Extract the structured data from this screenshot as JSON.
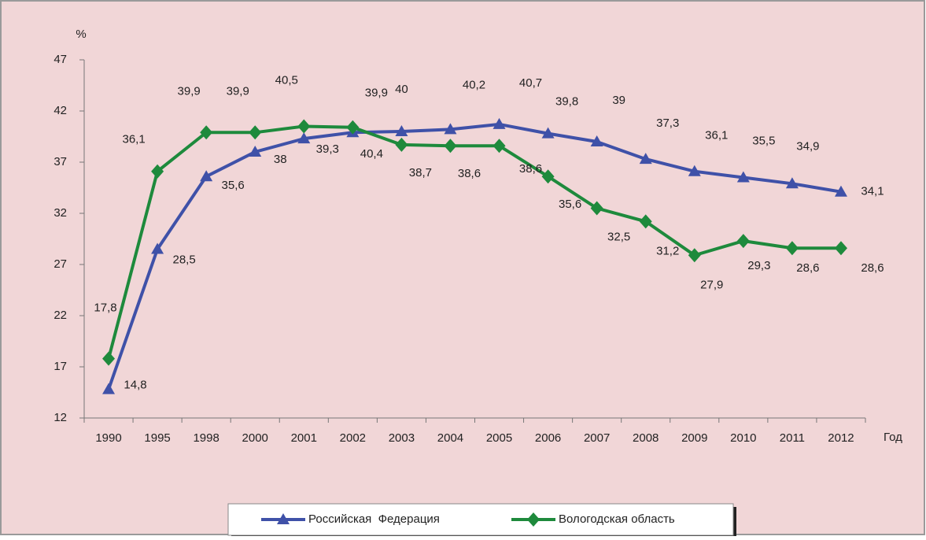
{
  "chart_data": {
    "type": "line",
    "y_label": "%",
    "x_label": "Год",
    "categories": [
      "1990",
      "1995",
      "1998",
      "2000",
      "2001",
      "2002",
      "2003",
      "2004",
      "2005",
      "2006",
      "2007",
      "2008",
      "2009",
      "2010",
      "2011",
      "2012"
    ],
    "series": [
      {
        "name": "Российская  Федерация",
        "color": "#3f51a8",
        "marker": "triangle",
        "values": [
          14.8,
          28.5,
          35.6,
          38,
          39.3,
          39.9,
          40,
          40.2,
          40.7,
          39.8,
          39,
          37.3,
          36.1,
          35.5,
          34.9,
          34.1
        ],
        "value_labels": [
          "14,8",
          "28,5",
          "35,6",
          "38",
          "39,3",
          "39,9",
          "40",
          "40,2",
          "40,7",
          "39,8",
          "39",
          "37,3",
          "36,1",
          "35,5",
          "34,9",
          "34,1"
        ]
      },
      {
        "name": "Вологодская область",
        "color": "#1e8a3c",
        "marker": "diamond",
        "values": [
          17.8,
          36.1,
          39.9,
          39.9,
          40.5,
          40.4,
          38.7,
          38.6,
          38.6,
          35.6,
          32.5,
          31.2,
          27.9,
          29.3,
          28.6,
          28.6
        ],
        "value_labels": [
          "17,8",
          "36,1",
          "39,9",
          "39,9",
          "40,5",
          "40,4",
          "38,7",
          "38,6",
          "38,6",
          "35,6",
          "32,5",
          "31,2",
          "27,9",
          "29,3",
          "28,6",
          "28,6"
        ]
      }
    ],
    "ylim": [
      12,
      47
    ],
    "yticks": [
      12,
      17,
      22,
      27,
      32,
      37,
      42,
      47
    ],
    "grid": false,
    "legend": "bottom"
  }
}
